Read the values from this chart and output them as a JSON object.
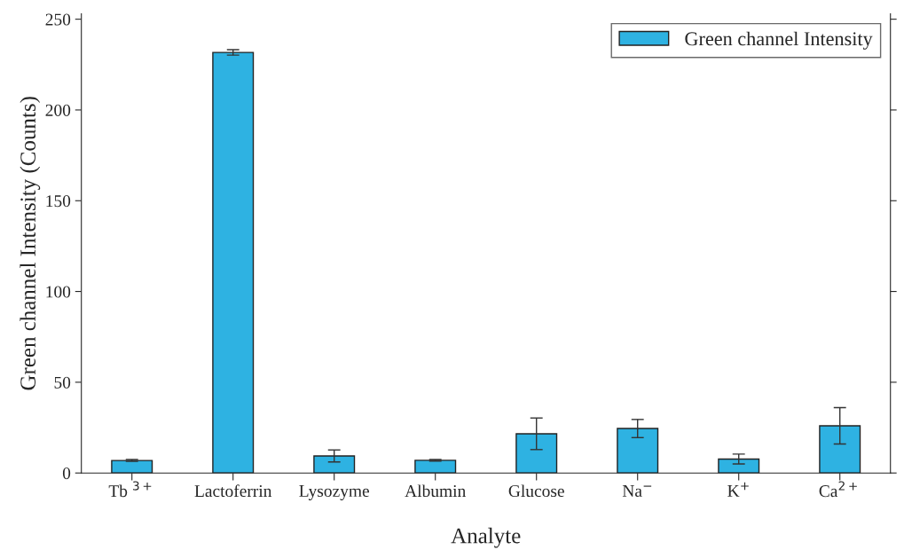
{
  "chart_data": {
    "type": "bar",
    "xlabel": "Analyte",
    "ylabel": "Green channel Intensity (Counts)",
    "categories": [
      "Tb $^{3+}$",
      "Lactoferrin",
      "Lysozyme",
      "Albumin",
      "Glucose",
      "Na$^{−}$",
      "K$^{+}$",
      "Ca$^{2+}$"
    ],
    "series": [
      {
        "name": "Green channel Intensity",
        "color": "#2eb2e2",
        "values": [
          6.9,
          231.7,
          9.4,
          7.0,
          21.6,
          24.5,
          7.7,
          26.0
        ],
        "errors": [
          0.5,
          1.5,
          3.3,
          0.4,
          8.7,
          5.0,
          2.7,
          10.0
        ]
      }
    ],
    "ylim": [
      0,
      253
    ],
    "yticks": [
      0,
      50,
      100,
      150,
      200,
      250
    ],
    "grid": false,
    "legend": "top right"
  }
}
